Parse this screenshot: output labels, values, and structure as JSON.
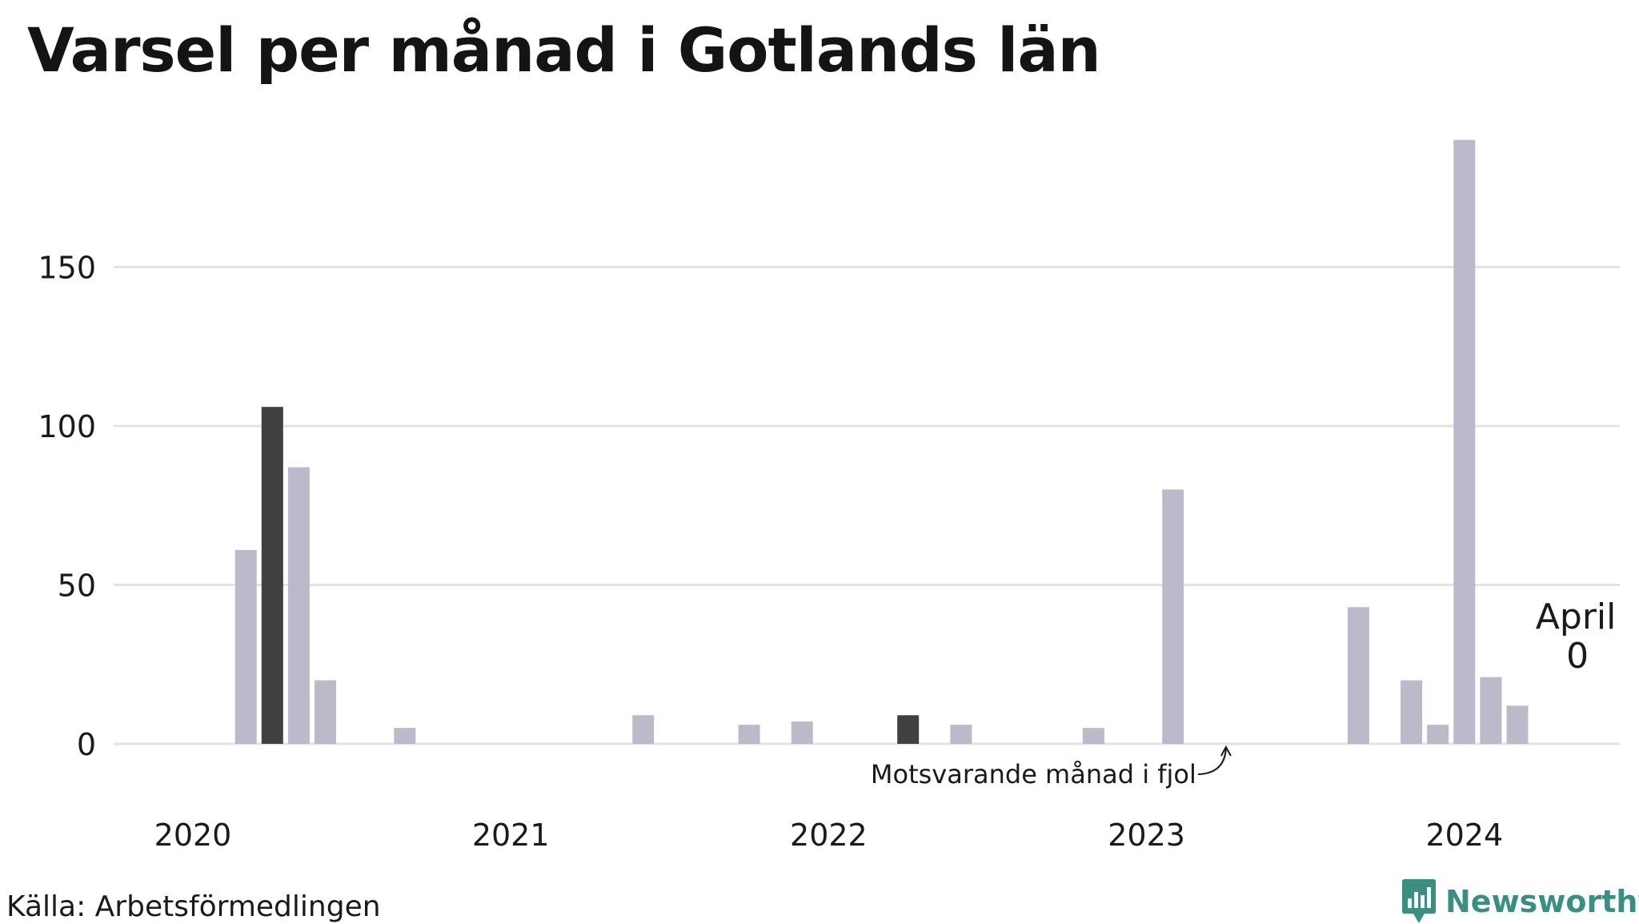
{
  "title": "Varsel per månad i Gotlands län",
  "source": "Källa: Arbetsförmedlingen",
  "brand": "Newsworthy",
  "colors": {
    "bar": "#bcbaca",
    "highlight": "#404040",
    "grid": "#e3e3e6",
    "brand": "#3b8f80"
  },
  "chart_data": {
    "type": "bar",
    "x_unit": "month",
    "yticks": [
      0,
      50,
      100,
      150
    ],
    "xticks": [
      "2020",
      "2021",
      "2022",
      "2023",
      "2024"
    ],
    "ylim": [
      0,
      190
    ],
    "grid": true,
    "data": [
      {
        "month": "2020-01",
        "value": 0
      },
      {
        "month": "2020-02",
        "value": 0
      },
      {
        "month": "2020-03",
        "value": 61
      },
      {
        "month": "2020-04",
        "value": 106,
        "highlight": true
      },
      {
        "month": "2020-05",
        "value": 87
      },
      {
        "month": "2020-06",
        "value": 20
      },
      {
        "month": "2020-07",
        "value": 0
      },
      {
        "month": "2020-08",
        "value": 0
      },
      {
        "month": "2020-09",
        "value": 5
      },
      {
        "month": "2020-10",
        "value": 0
      },
      {
        "month": "2020-11",
        "value": 0
      },
      {
        "month": "2020-12",
        "value": 0
      },
      {
        "month": "2021-01",
        "value": 0
      },
      {
        "month": "2021-02",
        "value": 0
      },
      {
        "month": "2021-03",
        "value": 0
      },
      {
        "month": "2021-04",
        "value": 0
      },
      {
        "month": "2021-05",
        "value": 0
      },
      {
        "month": "2021-06",
        "value": 9
      },
      {
        "month": "2021-07",
        "value": 0
      },
      {
        "month": "2021-08",
        "value": 0
      },
      {
        "month": "2021-09",
        "value": 0
      },
      {
        "month": "2021-10",
        "value": 6
      },
      {
        "month": "2021-11",
        "value": 0
      },
      {
        "month": "2021-12",
        "value": 7
      },
      {
        "month": "2022-01",
        "value": 0
      },
      {
        "month": "2022-02",
        "value": 0
      },
      {
        "month": "2022-03",
        "value": 0
      },
      {
        "month": "2022-04",
        "value": 9,
        "highlight": true
      },
      {
        "month": "2022-05",
        "value": 0
      },
      {
        "month": "2022-06",
        "value": 6
      },
      {
        "month": "2022-07",
        "value": 0
      },
      {
        "month": "2022-08",
        "value": 0
      },
      {
        "month": "2022-09",
        "value": 0
      },
      {
        "month": "2022-10",
        "value": 0
      },
      {
        "month": "2022-11",
        "value": 5
      },
      {
        "month": "2022-12",
        "value": 0
      },
      {
        "month": "2023-01",
        "value": 0
      },
      {
        "month": "2023-02",
        "value": 80
      },
      {
        "month": "2023-03",
        "value": 0
      },
      {
        "month": "2023-04",
        "value": 0,
        "highlight": true
      },
      {
        "month": "2023-05",
        "value": 0
      },
      {
        "month": "2023-06",
        "value": 0
      },
      {
        "month": "2023-07",
        "value": 0
      },
      {
        "month": "2023-08",
        "value": 0
      },
      {
        "month": "2023-09",
        "value": 43
      },
      {
        "month": "2023-10",
        "value": 0
      },
      {
        "month": "2023-11",
        "value": 20
      },
      {
        "month": "2023-12",
        "value": 6
      },
      {
        "month": "2024-01",
        "value": 190
      },
      {
        "month": "2024-02",
        "value": 21
      },
      {
        "month": "2024-03",
        "value": 12
      },
      {
        "month": "2024-04",
        "value": 0,
        "current": true
      }
    ],
    "annotations": [
      {
        "text": "Motsvarande månad i fjol",
        "target": "2023-04"
      },
      {
        "label": "April",
        "value_label": "0",
        "target": "2024-04"
      }
    ]
  }
}
